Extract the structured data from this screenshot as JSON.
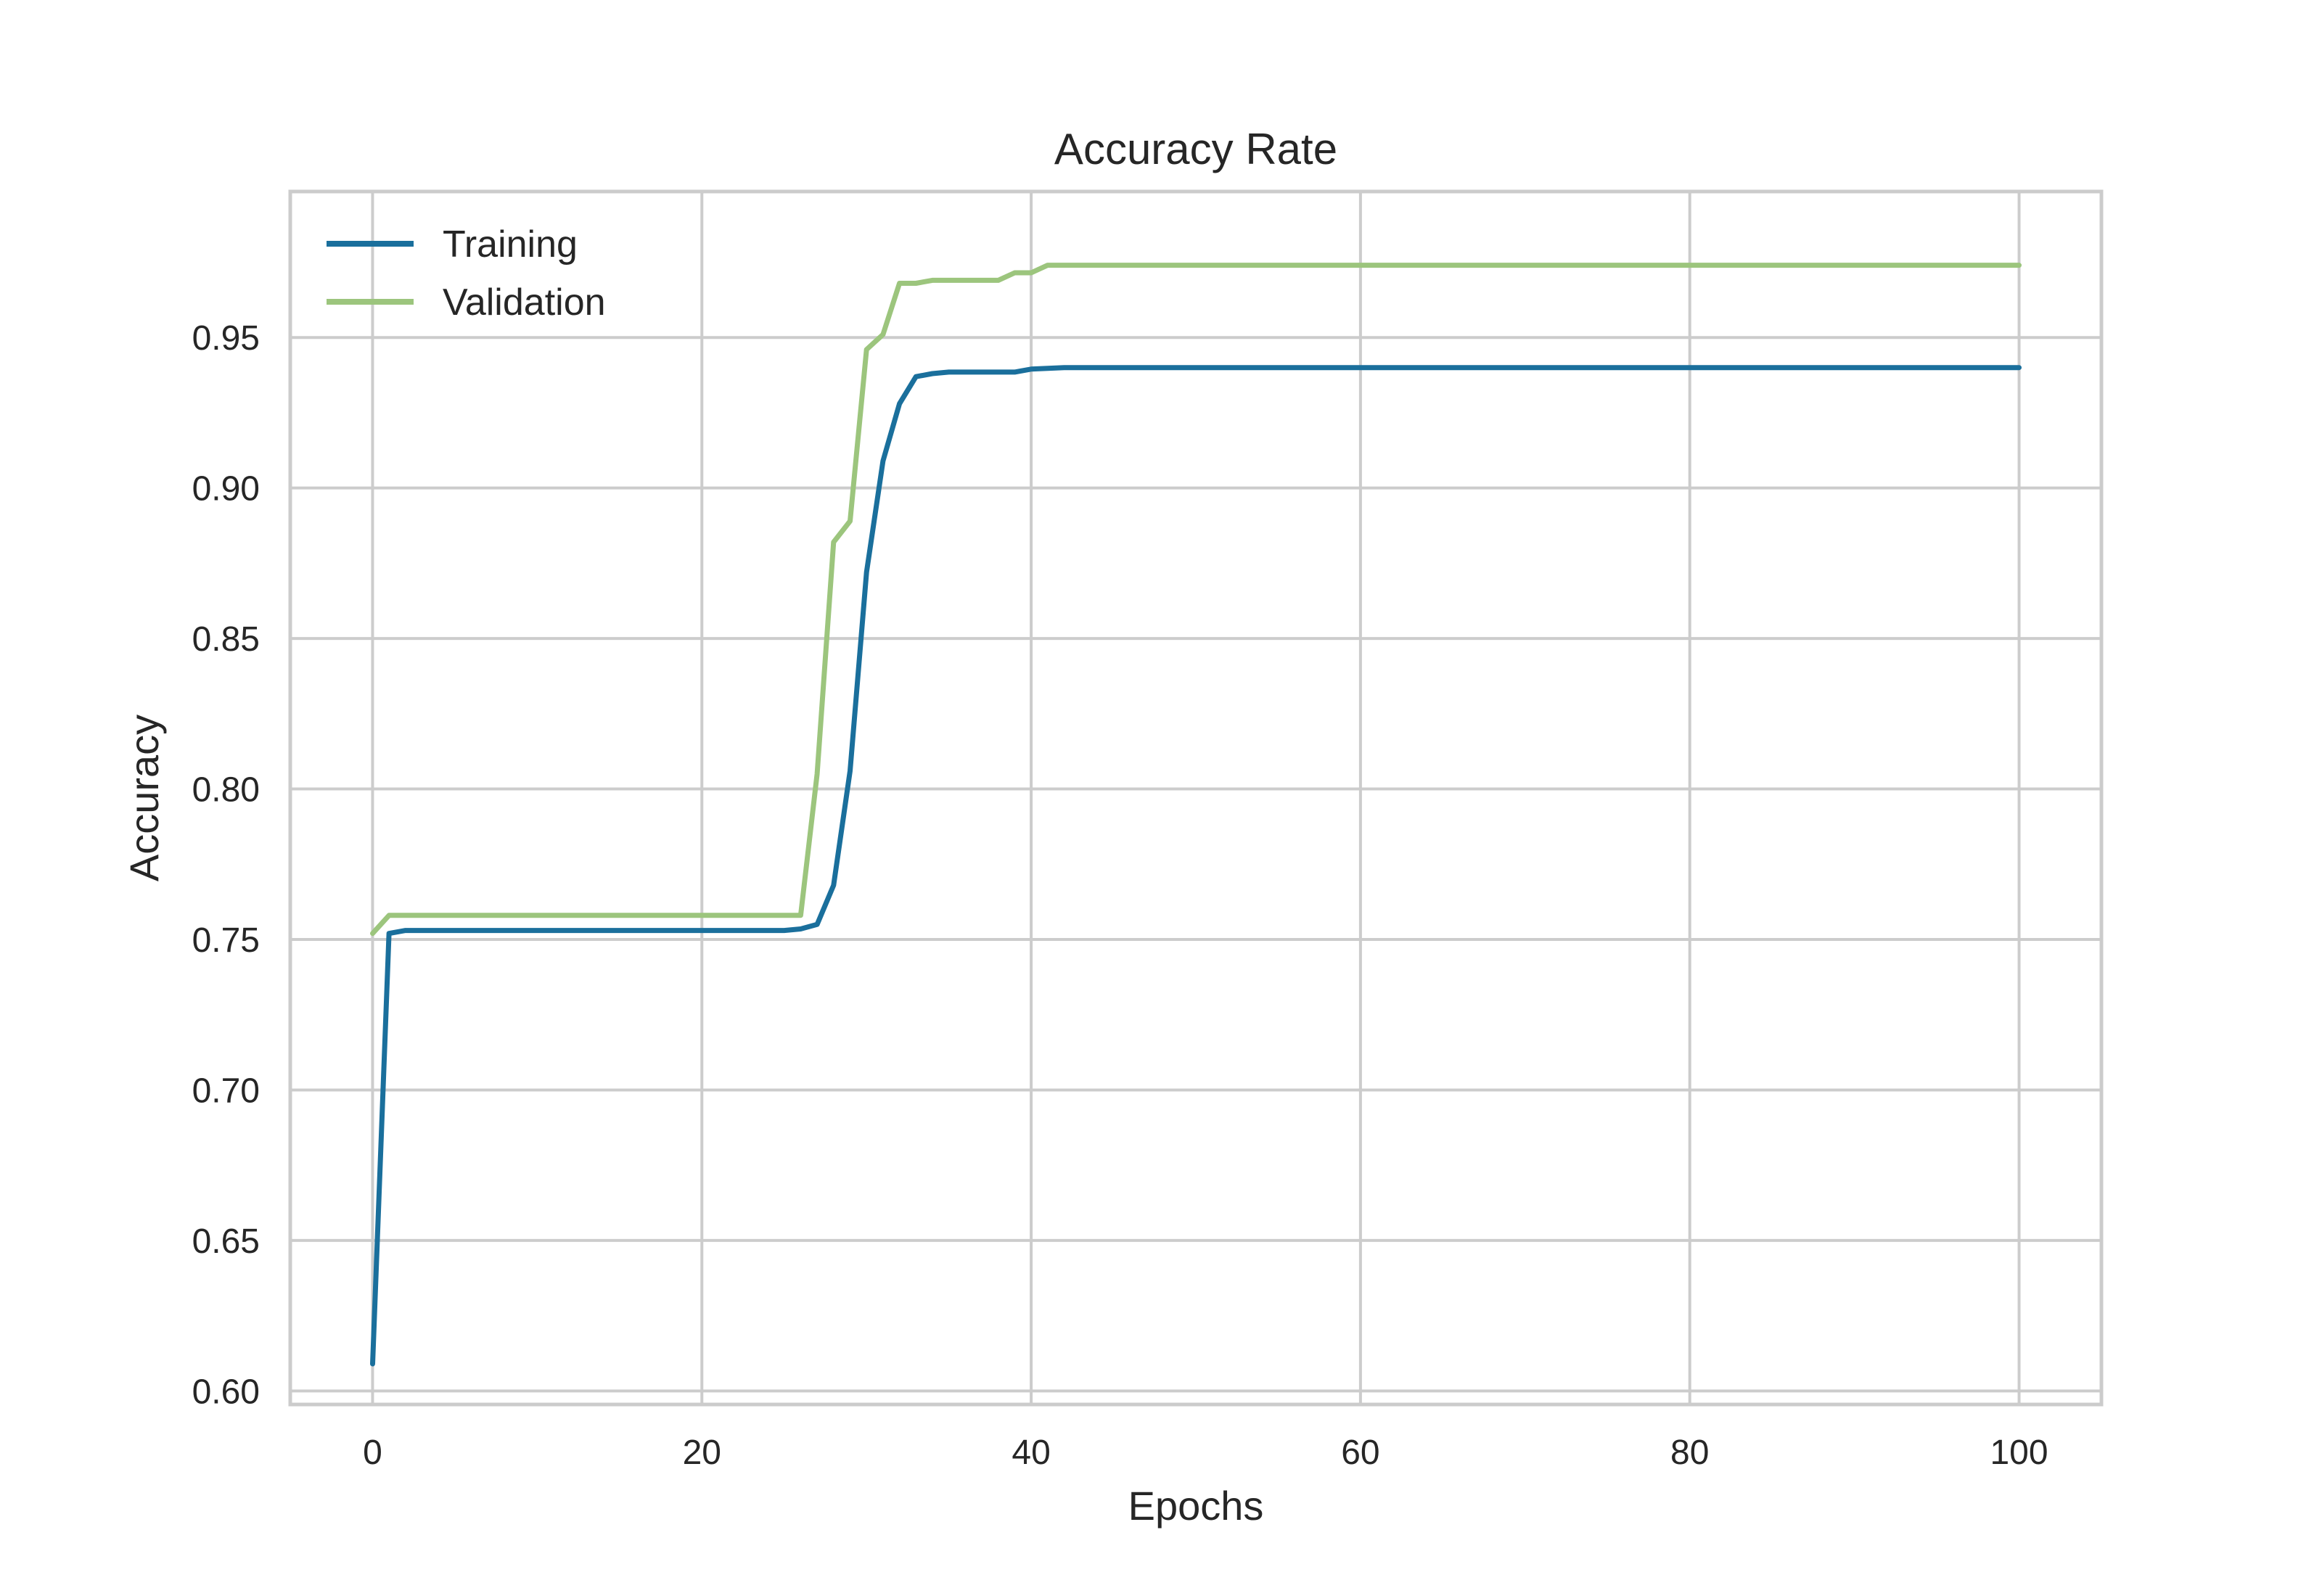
{
  "chart_data": {
    "type": "line",
    "title": "Accuracy Rate",
    "xlabel": "Epochs",
    "ylabel": "Accuracy",
    "xlim": [
      -5,
      105
    ],
    "ylim": [
      0.5955,
      0.9985
    ],
    "xticks": [
      0,
      20,
      40,
      60,
      80,
      100
    ],
    "xtick_labels": [
      "0",
      "20",
      "40",
      "60",
      "80",
      "100"
    ],
    "yticks": [
      0.6,
      0.65,
      0.7,
      0.75,
      0.8,
      0.85,
      0.9,
      0.95
    ],
    "ytick_labels": [
      "0.60",
      "0.65",
      "0.70",
      "0.75",
      "0.80",
      "0.85",
      "0.90",
      "0.95"
    ],
    "grid": true,
    "legend": "top-left",
    "series": [
      {
        "name": "Training",
        "color": "#1a6f9c",
        "points": [
          [
            0,
            0.609
          ],
          [
            1,
            0.752
          ],
          [
            2,
            0.753
          ],
          [
            25,
            0.753
          ],
          [
            26,
            0.7535
          ],
          [
            27,
            0.755
          ],
          [
            28,
            0.768
          ],
          [
            29,
            0.806
          ],
          [
            30,
            0.872
          ],
          [
            31,
            0.909
          ],
          [
            32,
            0.928
          ],
          [
            33,
            0.937
          ],
          [
            34,
            0.938
          ],
          [
            35,
            0.9385
          ],
          [
            39,
            0.9385
          ],
          [
            40,
            0.9395
          ],
          [
            42,
            0.94
          ],
          [
            100,
            0.94
          ]
        ]
      },
      {
        "name": "Validation",
        "color": "#9cc57d",
        "points": [
          [
            0,
            0.752
          ],
          [
            1,
            0.758
          ],
          [
            26,
            0.758
          ],
          [
            27,
            0.805
          ],
          [
            28,
            0.882
          ],
          [
            29,
            0.889
          ],
          [
            30,
            0.946
          ],
          [
            31,
            0.951
          ],
          [
            32,
            0.968
          ],
          [
            33,
            0.968
          ],
          [
            34,
            0.969
          ],
          [
            38,
            0.969
          ],
          [
            39,
            0.9715
          ],
          [
            40,
            0.9715
          ],
          [
            41,
            0.974
          ],
          [
            100,
            0.974
          ]
        ]
      }
    ]
  }
}
